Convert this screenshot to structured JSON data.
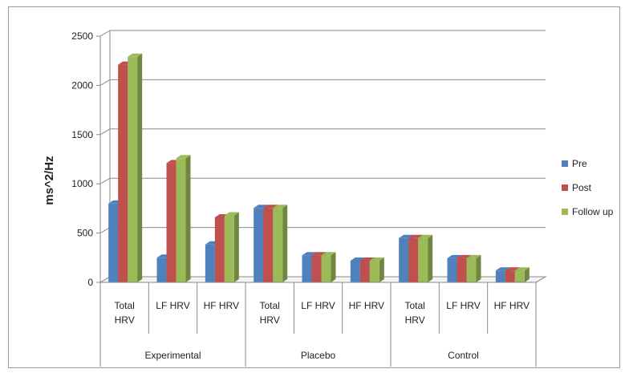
{
  "chart_data": {
    "type": "bar",
    "title": "",
    "xlabel": "",
    "ylabel": "ms^2/Hz",
    "ylim": [
      0,
      2500
    ],
    "yticks": [
      0,
      500,
      1000,
      1500,
      2000,
      2500
    ],
    "grid": true,
    "legend_position": "right",
    "groups": [
      {
        "label": "Experimental",
        "categories": [
          [
            "Total",
            "HRV"
          ],
          [
            "LF HRV"
          ],
          [
            "HF HRV"
          ]
        ]
      },
      {
        "label": "Placebo",
        "categories": [
          [
            "Total",
            "HRV"
          ],
          [
            "LF HRV"
          ],
          [
            "HF HRV"
          ]
        ]
      },
      {
        "label": "Control",
        "categories": [
          [
            "Total",
            "HRV"
          ],
          [
            "LF HRV"
          ],
          [
            "HF HRV"
          ]
        ]
      }
    ],
    "series": [
      {
        "name": "Pre",
        "color": "#4F81BD",
        "values": [
          800,
          250,
          385,
          755,
          275,
          220,
          450,
          245,
          120
        ]
      },
      {
        "name": "Post",
        "color": "#C0504D",
        "values": [
          2210,
          1210,
          660,
          755,
          275,
          220,
          450,
          245,
          120
        ]
      },
      {
        "name": "Follow up",
        "color": "#9BBB59",
        "values": [
          2290,
          1260,
          680,
          755,
          275,
          220,
          450,
          245,
          120
        ]
      }
    ]
  }
}
